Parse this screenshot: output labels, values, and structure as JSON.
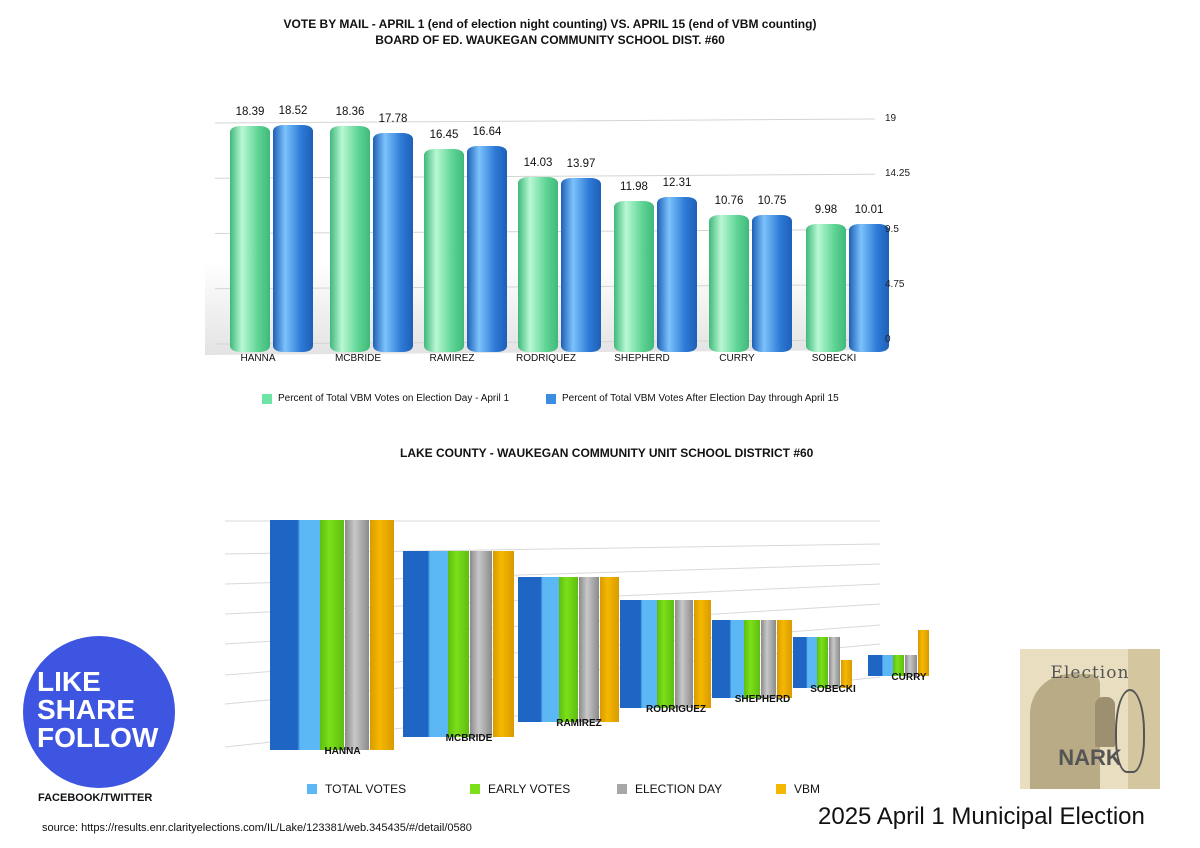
{
  "chart_data": [
    {
      "type": "bar",
      "title": "VOTE BY MAIL - APRIL 1 (end of election night counting)  VS.  APRIL 15 (end of VBM counting)",
      "subtitle": "BOARD OF ED. WAUKEGAN COMMUNITY SCHOOL DIST. #60",
      "categories": [
        "HANNA",
        "MCBRIDE",
        "RAMIREZ",
        "RODRIQUEZ",
        "SHEPHERD",
        "CURRY",
        "SOBECKI"
      ],
      "series": [
        {
          "name": "Percent of Total VBM Votes on Election Day - April 1",
          "color": "#6ee3a6",
          "values": [
            18.39,
            18.36,
            16.45,
            14.03,
            11.98,
            10.76,
            9.98
          ],
          "labels": [
            "18.39",
            "18.36",
            "16.45",
            "14.03",
            "11.98",
            "10.76",
            "9.98"
          ]
        },
        {
          "name": "Percent of Total VBM Votes After Election Day through April 15",
          "color": "#3a8de0",
          "values": [
            18.52,
            17.78,
            16.64,
            13.97,
            12.31,
            10.75,
            10.01
          ],
          "labels": [
            "18.52",
            "17.78",
            "16.64",
            "13.97",
            "12.31",
            "10.75",
            "10.01"
          ]
        }
      ],
      "yticks": [
        "19",
        "14.25",
        "9.5",
        "4.75",
        "0"
      ],
      "ylim": [
        0,
        19
      ],
      "y_axis_side": "right",
      "grid": true,
      "legend": "bottom"
    },
    {
      "type": "bar",
      "title": "LAKE COUNTY - WAUKEGAN COMMUNITY UNIT SCHOOL DISTRICT #60",
      "categories": [
        "HANNA",
        "MCBRIDE",
        "RAMIREZ",
        "RODRIGUEZ",
        "SHEPHERD",
        "SOBECKI",
        "CURRY"
      ],
      "value_scale": "relative (no axis labels printed; HANNA = 1)",
      "series": [
        {
          "name": "TOTAL VOTES",
          "color": "#5bb8f5",
          "values": [
            1.0,
            0.81,
            0.63,
            0.47,
            0.34,
            0.22,
            0.09
          ]
        },
        {
          "name": "EARLY VOTES",
          "color": "#7be019",
          "values": [
            1.0,
            0.81,
            0.63,
            0.47,
            0.34,
            0.22,
            0.09
          ]
        },
        {
          "name": "ELECTION DAY",
          "color": "#a8a8a8",
          "values": [
            1.0,
            0.81,
            0.63,
            0.47,
            0.34,
            0.22,
            0.09
          ]
        },
        {
          "name": "VBM",
          "color": "#f5b800",
          "values": [
            1.0,
            0.81,
            0.63,
            0.47,
            0.34,
            0.12,
            0.2
          ]
        }
      ],
      "grid": true,
      "legend": "bottom"
    }
  ],
  "social": {
    "lines": [
      "LIKE",
      "SHARE",
      "FOLLOW"
    ],
    "platforms": "FACEBOOK/TWITTER",
    "color": "#3d55e0"
  },
  "logo": {
    "top": "Election",
    "bottom": "NARK"
  },
  "footer": {
    "event": "2025 April 1 Municipal Election",
    "source": "source: https://results.enr.clarityelections.com/IL/Lake/123381/web.345435/#/detail/0580"
  }
}
